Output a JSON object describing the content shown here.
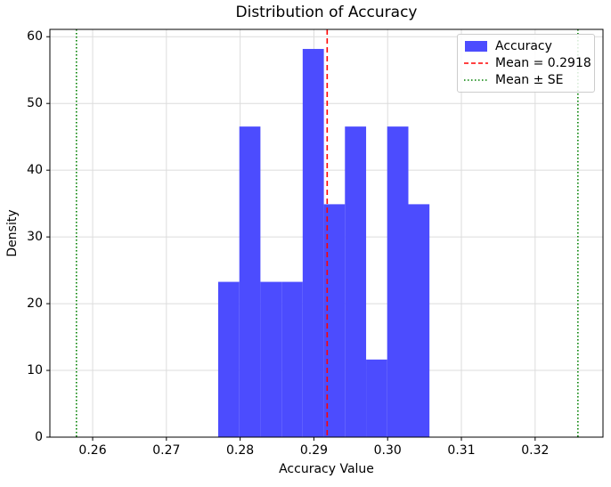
{
  "chart_data": {
    "type": "bar",
    "subtype": "histogram",
    "title": "Distribution of Accuracy",
    "xlabel": "Accuracy Value",
    "ylabel": "Density",
    "bin_edges": [
      0.27702,
      0.27989,
      0.28275,
      0.28562,
      0.28848,
      0.29135,
      0.29421,
      0.29708,
      0.29994,
      0.30281,
      0.30567
    ],
    "counts": [
      2,
      4,
      2,
      2,
      5,
      3,
      4,
      1,
      4,
      3
    ],
    "densities": [
      23.27,
      46.54,
      23.27,
      23.27,
      58.17,
      34.9,
      46.54,
      11.63,
      46.54,
      34.9
    ],
    "n_samples": 30,
    "mean_line": {
      "value": 0.2918,
      "label": "Mean = 0.2918",
      "color": "#ff0000",
      "style": "dashed"
    },
    "se_lines": {
      "values": [
        0.2578,
        0.3258
      ],
      "label": "Mean ± SE",
      "color": "#008000",
      "style": "dotted"
    },
    "xlim": [
      0.2542,
      0.3292
    ],
    "ylim": [
      0,
      61.1
    ],
    "xticks": {
      "values": [
        0.26,
        0.27,
        0.28,
        0.29,
        0.3,
        0.31,
        0.32
      ],
      "labels": [
        "0.26",
        "0.27",
        "0.28",
        "0.29",
        "0.30",
        "0.31",
        "0.32"
      ]
    },
    "yticks": {
      "values": [
        0,
        10,
        20,
        30,
        40,
        50,
        60
      ],
      "labels": [
        "0",
        "10",
        "20",
        "30",
        "40",
        "50",
        "60"
      ]
    },
    "grid": true,
    "legend": {
      "position": "upper right",
      "items": [
        {
          "label": "Accuracy",
          "swatch": "rect",
          "color": "#4c4cfe"
        },
        {
          "label": "Mean = 0.2918",
          "swatch": "dashed-line",
          "color": "#ff0000"
        },
        {
          "label": "Mean ± SE",
          "swatch": "dotted-line",
          "color": "#008000"
        }
      ]
    },
    "colors": {
      "hist_fill": "#4c4cfe",
      "grid": "#dcdcdc",
      "spine": "#000000",
      "mean": "#ff0000",
      "se": "#008000"
    }
  }
}
